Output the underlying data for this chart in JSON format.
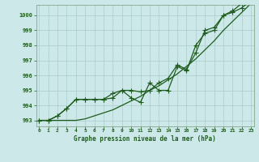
{
  "x": [
    0,
    1,
    2,
    3,
    4,
    5,
    6,
    7,
    8,
    9,
    10,
    11,
    12,
    13,
    14,
    15,
    16,
    17,
    18,
    19,
    20,
    21,
    22,
    23
  ],
  "line1": [
    993.0,
    993.0,
    993.3,
    993.8,
    994.4,
    994.4,
    994.4,
    994.4,
    994.5,
    995.0,
    995.0,
    994.9,
    995.0,
    995.5,
    995.8,
    996.7,
    996.4,
    997.5,
    999.0,
    999.2,
    1000.0,
    1000.2,
    1000.5,
    1001.0
  ],
  "line2": [
    993.0,
    993.0,
    993.3,
    993.8,
    994.4,
    994.4,
    994.4,
    994.4,
    994.8,
    995.0,
    994.5,
    994.2,
    995.5,
    995.0,
    995.0,
    996.6,
    996.3,
    998.0,
    998.8,
    999.0,
    1000.0,
    1000.3,
    1000.8,
    1001.1
  ],
  "line3": [
    993.0,
    993.0,
    993.0,
    993.0,
    993.0,
    993.1,
    993.3,
    993.5,
    993.7,
    994.0,
    994.3,
    994.6,
    995.0,
    995.3,
    995.7,
    996.1,
    996.6,
    997.1,
    997.7,
    998.3,
    999.0,
    999.6,
    1000.2,
    1000.8
  ],
  "bg_color": "#cde8e8",
  "grid_color": "#aacccc",
  "line_color": "#1e5c1e",
  "xlabel": "Graphe pression niveau de la mer (hPa)",
  "ylim_min": 992.6,
  "ylim_max": 1000.7,
  "yticks": [
    993,
    994,
    995,
    996,
    997,
    998,
    999,
    1000
  ],
  "xticks": [
    0,
    1,
    2,
    3,
    4,
    5,
    6,
    7,
    8,
    9,
    10,
    11,
    12,
    13,
    14,
    15,
    16,
    17,
    18,
    19,
    20,
    21,
    22,
    23
  ],
  "marker": "+",
  "markersize": 4,
  "linewidth": 0.9
}
